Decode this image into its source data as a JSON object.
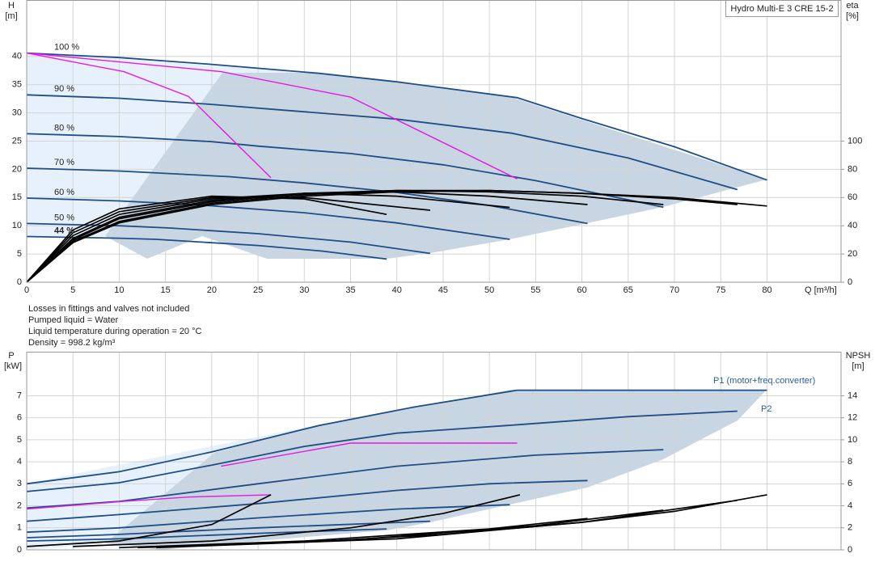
{
  "chart_data": [
    {
      "type": "line",
      "title": "Hydro Multi-E 3 CRE 15-2",
      "y_label": "H",
      "y_unit": "[m]",
      "y2_label": "eta",
      "y2_unit": "[%]",
      "x_label": "Q [m³/h]",
      "notes": [
        "Losses in fittings and valves not included",
        "Pumped liquid = Water",
        "Liquid temperature during operation = 20 °C",
        "Density = 998.2 kg/m³"
      ],
      "xlim": [
        0,
        88
      ],
      "xticks": [
        0,
        5,
        10,
        15,
        20,
        25,
        30,
        35,
        40,
        45,
        50,
        55,
        60,
        65,
        70,
        75,
        80
      ],
      "ylim": [
        0,
        50
      ],
      "yticks": [
        0,
        5,
        10,
        15,
        20,
        25,
        30,
        35,
        40
      ],
      "y2lim": [
        0,
        200
      ],
      "y2ticks": [
        0,
        20,
        40,
        60,
        80,
        100
      ],
      "grid": true,
      "series": [
        {
          "name": "100 %",
          "color": "#1f4e86",
          "x": [
            0,
            10,
            20,
            31.6,
            40,
            53,
            60,
            70,
            80
          ],
          "values": [
            40.6,
            39.8,
            38.6,
            37,
            35.5,
            32.7,
            29,
            24,
            18.1
          ]
        },
        {
          "name": "90 %",
          "color": "#1f4e86",
          "x": [
            0,
            10,
            20,
            28.4,
            40,
            52.4,
            65,
            76.8
          ],
          "values": [
            33.2,
            32.6,
            31.5,
            30.4,
            28.9,
            26.4,
            22,
            16.4
          ]
        },
        {
          "name": "80 %",
          "color": "#1f4e86",
          "x": [
            0,
            10,
            20,
            25.1,
            35,
            45,
            55,
            68.8
          ],
          "values": [
            26.3,
            25.8,
            24.9,
            24.1,
            22.8,
            20.8,
            18,
            13.3
          ]
        },
        {
          "name": "70 %",
          "color": "#1f4e86",
          "x": [
            0,
            10,
            21.9,
            30,
            40,
            50,
            60.6
          ],
          "values": [
            20.2,
            19.7,
            18.7,
            17.6,
            15.9,
            13.6,
            10.4
          ]
        },
        {
          "name": "60 %",
          "color": "#1f4e86",
          "x": [
            0,
            10,
            18.7,
            30,
            40,
            52.2
          ],
          "values": [
            14.9,
            14.4,
            13.7,
            12.3,
            10.5,
            7.6
          ]
        },
        {
          "name": "50 %",
          "color": "#1f4e86",
          "x": [
            0,
            10,
            15.5,
            25,
            35,
            43.6
          ],
          "values": [
            10.4,
            10,
            9.6,
            8.6,
            7.1,
            5.1
          ]
        },
        {
          "name": "44 %",
          "color": "#1f4e86",
          "x": [
            0,
            10,
            14,
            25,
            32,
            38.9
          ],
          "values": [
            8.1,
            7.8,
            7.6,
            6.5,
            5.5,
            4.1
          ]
        },
        {
          "color": "#e619e6",
          "x": [
            0,
            10.5,
            17.5,
            26.4
          ],
          "values": [
            40.6,
            37.3,
            32.9,
            18.5
          ]
        },
        {
          "color": "#e619e6",
          "x": [
            0,
            21,
            35,
            53
          ],
          "values": [
            40.6,
            37.3,
            32.8,
            18.3
          ]
        },
        {
          "color": "#000000",
          "axis": "y2",
          "x": [
            0,
            5,
            10,
            20,
            30,
            40,
            50,
            60,
            70,
            80
          ],
          "values": [
            0,
            28,
            42,
            55,
            61,
            64,
            65,
            63,
            60,
            54
          ]
        },
        {
          "color": "#000000",
          "axis": "y2",
          "x": [
            0,
            5,
            10,
            20,
            30,
            40,
            50,
            60,
            70,
            76.8
          ],
          "values": [
            0,
            29,
            43,
            56,
            62,
            65,
            65,
            63,
            59,
            55
          ]
        },
        {
          "color": "#000000",
          "axis": "y2",
          "x": [
            0,
            5,
            10,
            20,
            30,
            40,
            50,
            60,
            68.8
          ],
          "values": [
            0,
            30,
            45,
            57,
            63,
            65,
            64,
            61,
            55
          ]
        },
        {
          "color": "#000000",
          "axis": "y2",
          "x": [
            0,
            5,
            10,
            20,
            30,
            40,
            50,
            60.6
          ],
          "values": [
            0,
            31,
            46,
            58,
            63,
            64,
            61,
            55
          ]
        },
        {
          "color": "#000000",
          "axis": "y2",
          "x": [
            0,
            5,
            10,
            20,
            30,
            40,
            52.2
          ],
          "values": [
            0,
            33,
            48,
            59,
            63,
            61,
            53
          ]
        },
        {
          "color": "#000000",
          "axis": "y2",
          "x": [
            0,
            5,
            10,
            20,
            30,
            43.6
          ],
          "values": [
            0,
            35,
            50,
            60,
            60,
            51
          ]
        },
        {
          "color": "#000000",
          "axis": "y2",
          "x": [
            0,
            5,
            10,
            20,
            30,
            38.9
          ],
          "values": [
            0,
            37,
            52,
            61,
            59,
            48
          ]
        }
      ]
    },
    {
      "type": "line",
      "y_label": "P",
      "y_unit": "[kW]",
      "y2_label": "NPSH",
      "y2_unit": "[m]",
      "xlim": [
        0,
        88
      ],
      "xticks": [
        0,
        5,
        10,
        15,
        20,
        25,
        30,
        35,
        40,
        45,
        50,
        55,
        60,
        65,
        70,
        75,
        80
      ],
      "ylim": [
        0,
        9
      ],
      "yticks": [
        0,
        1,
        2,
        3,
        4,
        5,
        6,
        7
      ],
      "y2lim": [
        0,
        18
      ],
      "y2ticks": [
        0,
        2,
        4,
        6,
        8,
        10,
        12,
        14
      ],
      "grid": true,
      "series": [
        {
          "name": "P1 (motor+freq.converter)",
          "color": "#1f4e86",
          "x": [
            0,
            10,
            20,
            31.6,
            42,
            53,
            80
          ],
          "values": [
            3.0,
            3.55,
            4.45,
            5.65,
            6.5,
            7.25,
            7.25
          ]
        },
        {
          "name": "P2",
          "color": "#1f4e86",
          "x": [
            0,
            10,
            20,
            30,
            40,
            52,
            65,
            76.8
          ],
          "values": [
            2.65,
            3.05,
            3.85,
            4.7,
            5.3,
            5.65,
            6.05,
            6.3
          ]
        },
        {
          "color": "#1f4e86",
          "x": [
            0,
            10,
            25,
            40,
            55,
            68.8
          ],
          "values": [
            1.9,
            2.2,
            3.0,
            3.8,
            4.3,
            4.55
          ]
        },
        {
          "color": "#1f4e86",
          "x": [
            0,
            10,
            25,
            40,
            50,
            60.6
          ],
          "values": [
            1.3,
            1.6,
            2.1,
            2.7,
            3.0,
            3.15
          ]
        },
        {
          "color": "#1f4e86",
          "x": [
            0,
            10,
            25,
            40,
            52.2
          ],
          "values": [
            0.8,
            1.0,
            1.45,
            1.85,
            2.05
          ]
        },
        {
          "color": "#1f4e86",
          "x": [
            0,
            10,
            25,
            43.6
          ],
          "values": [
            0.55,
            0.7,
            1.0,
            1.3
          ]
        },
        {
          "color": "#1f4e86",
          "x": [
            0,
            10,
            25,
            38.9
          ],
          "values": [
            0.4,
            0.5,
            0.75,
            0.95
          ]
        },
        {
          "color": "#e619e6",
          "x": [
            21,
            35,
            53
          ],
          "values": [
            3.8,
            4.85,
            4.85
          ]
        },
        {
          "color": "#e619e6",
          "x": [
            0,
            10.5,
            17.5,
            26.4
          ],
          "values": [
            1.85,
            2.2,
            2.4,
            2.5
          ]
        },
        {
          "color": "#000000",
          "axis": "y2",
          "x": [
            15,
            30,
            45,
            60,
            70,
            80
          ],
          "values": [
            0.3,
            0.7,
            1.4,
            2.5,
            3.5,
            5.0
          ]
        },
        {
          "color": "#000000",
          "axis": "y2",
          "x": [
            0,
            10,
            20,
            26.4
          ],
          "values": [
            0.3,
            0.8,
            2.3,
            5.0
          ]
        },
        {
          "color": "#000000",
          "axis": "y2",
          "x": [
            5,
            20,
            35,
            45,
            53.3
          ],
          "values": [
            0.3,
            0.8,
            2.0,
            3.3,
            5.0
          ]
        },
        {
          "color": "#000000",
          "axis": "y2",
          "x": [
            10,
            30,
            50,
            60.6
          ],
          "values": [
            0.2,
            0.8,
            1.9,
            2.85
          ]
        },
        {
          "color": "#000000",
          "axis": "y2",
          "x": [
            12,
            35,
            55,
            68.8
          ],
          "values": [
            0.2,
            0.9,
            2.2,
            3.6
          ]
        },
        {
          "color": "#000000",
          "axis": "y2",
          "x": [
            14,
            40,
            60,
            76.8
          ],
          "values": [
            0.2,
            1.0,
            2.5,
            4.5
          ]
        }
      ]
    }
  ]
}
